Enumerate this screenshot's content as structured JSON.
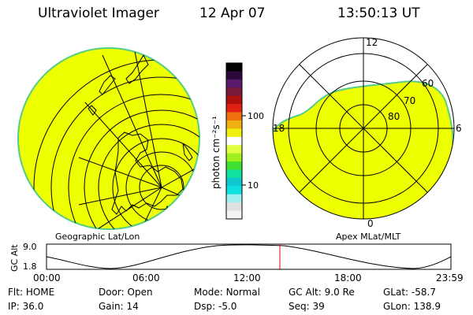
{
  "header": {
    "instrument": "Ultraviolet Imager",
    "date": "12 Apr 07",
    "time": "13:50:13 UT"
  },
  "colorbar": {
    "unit_label": "photon cm⁻²s⁻¹",
    "ticks": [
      "100",
      "10"
    ],
    "colors": [
      "#000000",
      "#2a0a3a",
      "#5a1a6a",
      "#7a1a3a",
      "#b01010",
      "#e02010",
      "#f07010",
      "#f0b010",
      "#f0f010",
      "#ffffff",
      "#e0ff40",
      "#a0f020",
      "#40e030",
      "#10e0a0",
      "#10c8d0",
      "#10e0e0",
      "#a0f0f0",
      "#e0e0e0",
      "#f4f4f4"
    ],
    "fill_color": "#eeff00"
  },
  "left_panel": {
    "label": "Geographic Lat/Lon"
  },
  "right_panel": {
    "label": "Apex MLat/MLT",
    "mlt_labels": {
      "top": "12",
      "left": "18",
      "right": "6",
      "bottom": "0"
    },
    "lat_labels": [
      "60",
      "70",
      "80"
    ]
  },
  "altitude_plot": {
    "ylabel": "GC Alt",
    "ytick_top": "9.0",
    "ytick_bottom": "1.8",
    "xticks": [
      "00:00",
      "06:00",
      "12:00",
      "18:00",
      "23:59"
    ],
    "current_time_fraction": 0.577
  },
  "footer": {
    "row1": [
      {
        "label": "Flt:",
        "value": "HOME"
      },
      {
        "label": "Door:",
        "value": "Open"
      },
      {
        "label": "Mode:",
        "value": "Normal"
      },
      {
        "label": "GC Alt:",
        "value": "9.0 Re"
      },
      {
        "label": "GLat:",
        "value": "-58.7"
      }
    ],
    "row2": [
      {
        "label": "IP:",
        "value": "36.0"
      },
      {
        "label": "Gain:",
        "value": "14"
      },
      {
        "label": "Dsp:",
        "value": "-5.0"
      },
      {
        "label": "Seq:",
        "value": "39"
      },
      {
        "label": "GLon:",
        "value": "138.9"
      }
    ]
  }
}
